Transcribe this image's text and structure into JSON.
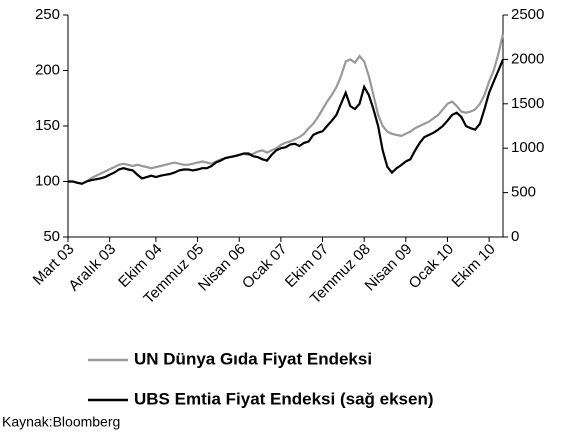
{
  "chart_data": {
    "type": "line",
    "categories": [
      "Mart 03",
      null,
      null,
      null,
      null,
      null,
      null,
      null,
      null,
      "Aralık 03",
      null,
      null,
      null,
      null,
      null,
      null,
      null,
      null,
      null,
      "Ekim 04",
      null,
      null,
      null,
      null,
      null,
      null,
      null,
      null,
      "Temmuz 05",
      null,
      null,
      null,
      null,
      null,
      null,
      null,
      null,
      "Nisan 06",
      null,
      null,
      null,
      null,
      null,
      null,
      null,
      null,
      "Ocak 07",
      null,
      null,
      null,
      null,
      null,
      null,
      null,
      null,
      "Ekim 07",
      null,
      null,
      null,
      null,
      null,
      null,
      null,
      null,
      "Temmuz 08",
      null,
      null,
      null,
      null,
      null,
      null,
      null,
      null,
      "Nisan 09",
      null,
      null,
      null,
      null,
      null,
      null,
      null,
      null,
      "Ocak 10",
      null,
      null,
      null,
      null,
      null,
      null,
      null,
      null,
      "Ekim 10",
      null,
      null,
      null
    ],
    "series": [
      {
        "name": "UN Dünya Gıda Fiyat Endeksi",
        "color": "#999999",
        "axis": "y",
        "values": [
          100,
          100,
          99,
          98,
          100,
          103,
          105,
          107,
          109,
          111,
          113,
          115,
          116,
          115,
          114,
          115,
          114,
          113,
          112,
          113,
          114,
          115,
          116,
          117,
          116,
          115,
          115,
          116,
          117,
          118,
          117,
          116,
          118,
          120,
          121,
          122,
          123,
          124,
          125,
          124,
          125,
          127,
          128,
          126,
          128,
          130,
          133,
          135,
          136,
          138,
          140,
          143,
          148,
          152,
          158,
          165,
          172,
          178,
          185,
          195,
          208,
          210,
          207,
          213,
          208,
          195,
          178,
          160,
          150,
          145,
          143,
          142,
          141,
          143,
          145,
          148,
          150,
          152,
          154,
          157,
          160,
          165,
          170,
          172,
          168,
          163,
          162,
          163,
          165,
          170,
          178,
          190,
          200,
          215,
          233
        ]
      },
      {
        "name": "UBS Emtia Fiyat Endeksi (sağ eksen)",
        "color": "#000000",
        "axis": "y2",
        "values": [
          625,
          625,
          610,
          600,
          625,
          640,
          650,
          660,
          675,
          700,
          725,
          760,
          775,
          760,
          750,
          700,
          660,
          675,
          690,
          675,
          690,
          700,
          710,
          725,
          750,
          760,
          760,
          750,
          760,
          775,
          775,
          800,
          840,
          860,
          890,
          900,
          910,
          925,
          940,
          940,
          910,
          900,
          875,
          860,
          925,
          975,
          1000,
          1010,
          1040,
          1050,
          1025,
          1060,
          1075,
          1150,
          1175,
          1190,
          1250,
          1310,
          1375,
          1500,
          1625,
          1475,
          1440,
          1500,
          1690,
          1600,
          1440,
          1250,
          975,
          790,
          725,
          775,
          810,
          850,
          875,
          975,
          1060,
          1125,
          1150,
          1175,
          1210,
          1250,
          1310,
          1375,
          1400,
          1350,
          1250,
          1225,
          1210,
          1275,
          1440,
          1625,
          1750,
          1875,
          2000
        ]
      }
    ],
    "ylim": [
      50,
      250
    ],
    "yticks": [
      50,
      100,
      150,
      200,
      250
    ],
    "y2lim": [
      0,
      2500
    ],
    "y2ticks": [
      0,
      500,
      1000,
      1500,
      2000,
      2500
    ],
    "grid": false,
    "legend": "bottom",
    "source": "Kaynak:Bloomberg"
  }
}
